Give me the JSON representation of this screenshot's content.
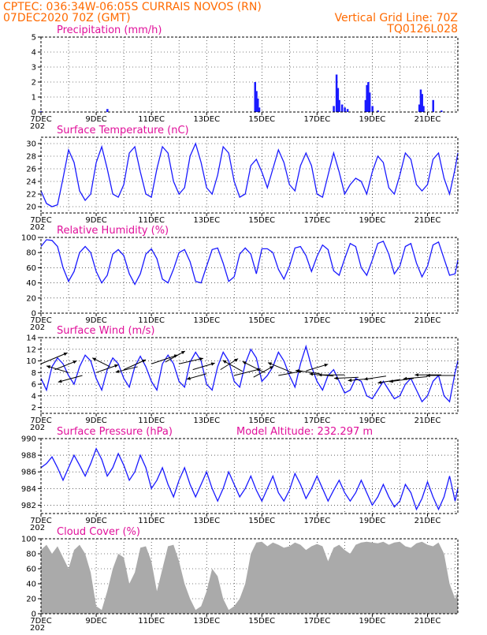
{
  "header": {
    "line1_left": "CPTEC:   036:34W-06:05S   CURRAIS NOVOS (RN)",
    "line2_left": "07DEC2020 70Z (GMT)",
    "line2_right": "Vertical Grid Line: 70Z",
    "line3_right": "TQ0126L028"
  },
  "colors": {
    "header": "#ff6a00",
    "panel_title": "#e0109a",
    "series": "#1a1aff",
    "cloud": "#aaaaaa",
    "grid": "#000000"
  },
  "x_axis": {
    "start_day": 7,
    "end_day": 22.1,
    "tick_labels": [
      "7DEC",
      "9DEC",
      "11DEC",
      "13DEC",
      "15DEC",
      "17DEC",
      "19DEC",
      "21DEC"
    ],
    "tick_days": [
      7,
      9,
      11,
      13,
      15,
      17,
      19,
      21
    ],
    "under_label": "202"
  },
  "chart_data": [
    {
      "id": "precip",
      "type": "bar",
      "title": "Precipitation (mm/h)",
      "ylim": [
        0,
        5
      ],
      "yticks": [
        0,
        1,
        2,
        3,
        4,
        5
      ],
      "bars": [
        [
          7.0,
          0.05
        ],
        [
          9.4,
          0.2
        ],
        [
          14.75,
          2.0
        ],
        [
          14.8,
          1.4
        ],
        [
          14.85,
          0.9
        ],
        [
          14.9,
          0.3
        ],
        [
          17.6,
          0.4
        ],
        [
          17.7,
          2.5
        ],
        [
          17.75,
          1.6
        ],
        [
          17.8,
          0.8
        ],
        [
          17.9,
          0.5
        ],
        [
          18.0,
          0.3
        ],
        [
          18.1,
          0.2
        ],
        [
          18.75,
          0.8
        ],
        [
          18.8,
          1.8
        ],
        [
          18.85,
          2.0
        ],
        [
          18.9,
          1.3
        ],
        [
          19.0,
          0.4
        ],
        [
          19.2,
          0.1
        ],
        [
          20.7,
          0.5
        ],
        [
          20.75,
          1.5
        ],
        [
          20.8,
          1.2
        ],
        [
          20.85,
          0.4
        ],
        [
          21.2,
          0.8
        ],
        [
          21.5,
          0.1
        ]
      ]
    },
    {
      "id": "temp",
      "type": "line",
      "title": "Surface Temperature (nC)",
      "ylim": [
        19,
        31
      ],
      "yticks": [
        20,
        22,
        24,
        26,
        28,
        30
      ],
      "x": [
        7.0,
        7.2,
        7.4,
        7.6,
        7.8,
        8.0,
        8.2,
        8.4,
        8.6,
        8.8,
        9.0,
        9.2,
        9.4,
        9.6,
        9.8,
        10.0,
        10.2,
        10.4,
        10.6,
        10.8,
        11.0,
        11.2,
        11.4,
        11.6,
        11.8,
        12.0,
        12.2,
        12.4,
        12.6,
        12.8,
        13.0,
        13.2,
        13.4,
        13.6,
        13.8,
        14.0,
        14.2,
        14.4,
        14.6,
        14.8,
        15.0,
        15.2,
        15.4,
        15.6,
        15.8,
        16.0,
        16.2,
        16.4,
        16.6,
        16.8,
        17.0,
        17.2,
        17.4,
        17.6,
        17.8,
        18.0,
        18.2,
        18.4,
        18.6,
        18.8,
        19.0,
        19.2,
        19.4,
        19.6,
        19.8,
        20.0,
        20.2,
        20.4,
        20.6,
        20.8,
        21.0,
        21.2,
        21.4,
        21.6,
        21.8,
        22.0,
        22.1
      ],
      "y": [
        22.5,
        20.5,
        20.0,
        20.3,
        24.5,
        29.0,
        27.0,
        22.5,
        21.0,
        22.0,
        27.0,
        29.5,
        26.0,
        22.0,
        21.5,
        23.5,
        28.5,
        29.5,
        25.5,
        22.0,
        21.5,
        26.0,
        29.5,
        28.5,
        24.0,
        22.0,
        23.0,
        28.0,
        30.0,
        27.0,
        23.0,
        22.0,
        25.0,
        29.5,
        28.5,
        24.0,
        21.5,
        22.0,
        26.5,
        27.5,
        25.5,
        23.0,
        26.0,
        29.0,
        27.0,
        23.5,
        22.5,
        26.5,
        28.5,
        26.5,
        22.0,
        21.5,
        25.0,
        28.5,
        25.5,
        22.0,
        23.5,
        24.5,
        24.0,
        22.0,
        25.5,
        28.0,
        27.0,
        23.0,
        22.0,
        25.0,
        28.5,
        27.5,
        23.5,
        22.5,
        23.5,
        27.5,
        28.5,
        24.5,
        22.0,
        26.0,
        28.5
      ]
    },
    {
      "id": "rh",
      "type": "line",
      "title": "Relative Humidity (%)",
      "ylim": [
        0,
        100
      ],
      "yticks": [
        0,
        20,
        40,
        60,
        80,
        100
      ],
      "x": [
        7.0,
        7.2,
        7.4,
        7.6,
        7.8,
        8.0,
        8.2,
        8.4,
        8.6,
        8.8,
        9.0,
        9.2,
        9.4,
        9.6,
        9.8,
        10.0,
        10.2,
        10.4,
        10.6,
        10.8,
        11.0,
        11.2,
        11.4,
        11.6,
        11.8,
        12.0,
        12.2,
        12.4,
        12.6,
        12.8,
        13.0,
        13.2,
        13.4,
        13.6,
        13.8,
        14.0,
        14.2,
        14.4,
        14.6,
        14.8,
        15.0,
        15.2,
        15.4,
        15.6,
        15.8,
        16.0,
        16.2,
        16.4,
        16.6,
        16.8,
        17.0,
        17.2,
        17.4,
        17.6,
        17.8,
        18.0,
        18.2,
        18.4,
        18.6,
        18.8,
        19.0,
        19.2,
        19.4,
        19.6,
        19.8,
        20.0,
        20.2,
        20.4,
        20.6,
        20.8,
        21.0,
        21.2,
        21.4,
        21.6,
        21.8,
        22.0,
        22.1
      ],
      "y": [
        88,
        97,
        96,
        88,
        60,
        42,
        55,
        80,
        88,
        80,
        55,
        40,
        50,
        78,
        84,
        76,
        52,
        38,
        52,
        78,
        85,
        72,
        45,
        40,
        58,
        80,
        84,
        68,
        42,
        40,
        62,
        84,
        86,
        66,
        42,
        48,
        78,
        86,
        78,
        52,
        85,
        85,
        80,
        58,
        45,
        62,
        86,
        88,
        76,
        55,
        75,
        90,
        84,
        56,
        50,
        72,
        92,
        88,
        60,
        50,
        70,
        92,
        95,
        78,
        52,
        62,
        88,
        92,
        66,
        48,
        62,
        90,
        94,
        72,
        50,
        52,
        70
      ]
    },
    {
      "id": "wind",
      "type": "line",
      "title": "Surface Wind (m/s)",
      "ylim": [
        1,
        14
      ],
      "yticks": [
        2,
        4,
        6,
        8,
        10,
        12,
        14
      ],
      "x": [
        7.0,
        7.2,
        7.4,
        7.6,
        7.8,
        8.0,
        8.2,
        8.4,
        8.6,
        8.8,
        9.0,
        9.2,
        9.4,
        9.6,
        9.8,
        10.0,
        10.2,
        10.4,
        10.6,
        10.8,
        11.0,
        11.2,
        11.4,
        11.6,
        11.8,
        12.0,
        12.2,
        12.4,
        12.6,
        12.8,
        13.0,
        13.2,
        13.4,
        13.6,
        13.8,
        14.0,
        14.2,
        14.4,
        14.6,
        14.8,
        15.0,
        15.2,
        15.4,
        15.6,
        15.8,
        16.0,
        16.2,
        16.4,
        16.6,
        16.8,
        17.0,
        17.2,
        17.4,
        17.6,
        17.8,
        18.0,
        18.2,
        18.4,
        18.6,
        18.8,
        19.0,
        19.2,
        19.4,
        19.6,
        19.8,
        20.0,
        20.2,
        20.4,
        20.6,
        20.8,
        21.0,
        21.2,
        21.4,
        21.6,
        21.8,
        22.0,
        22.1
      ],
      "y": [
        7.0,
        5.0,
        9.0,
        10.5,
        9.5,
        7.5,
        6.0,
        9.0,
        11.0,
        10.0,
        7.0,
        5.0,
        8.5,
        10.5,
        9.5,
        7.0,
        5.5,
        9.0,
        10.8,
        9.0,
        6.5,
        5.0,
        9.5,
        11.0,
        9.5,
        6.5,
        5.5,
        9.8,
        11.5,
        10.0,
        6.0,
        5.0,
        9.0,
        11.5,
        10.0,
        6.5,
        5.5,
        9.5,
        12.0,
        10.5,
        6.5,
        7.5,
        9.0,
        11.5,
        10.0,
        7.5,
        5.5,
        9.5,
        12.5,
        9.0,
        6.5,
        5.0,
        7.5,
        8.5,
        6.5,
        4.5,
        5.0,
        7.0,
        6.5,
        4.0,
        3.5,
        5.0,
        6.5,
        5.0,
        3.5,
        4.0,
        6.0,
        7.0,
        5.0,
        3.0,
        4.0,
        6.5,
        7.5,
        4.0,
        3.0,
        8.0,
        10.0
      ]
    },
    {
      "id": "pressure",
      "type": "line",
      "title": "Surface Pressure (hPa)",
      "subtitle": "Model Altitude: 232.297 m",
      "ylim": [
        981,
        990
      ],
      "yticks": [
        982,
        984,
        986,
        988,
        990
      ],
      "x": [
        7.0,
        7.2,
        7.4,
        7.6,
        7.8,
        8.0,
        8.2,
        8.4,
        8.6,
        8.8,
        9.0,
        9.2,
        9.4,
        9.6,
        9.8,
        10.0,
        10.2,
        10.4,
        10.6,
        10.8,
        11.0,
        11.2,
        11.4,
        11.6,
        11.8,
        12.0,
        12.2,
        12.4,
        12.6,
        12.8,
        13.0,
        13.2,
        13.4,
        13.6,
        13.8,
        14.0,
        14.2,
        14.4,
        14.6,
        14.8,
        15.0,
        15.2,
        15.4,
        15.6,
        15.8,
        16.0,
        16.2,
        16.4,
        16.6,
        16.8,
        17.0,
        17.2,
        17.4,
        17.6,
        17.8,
        18.0,
        18.2,
        18.4,
        18.6,
        18.8,
        19.0,
        19.2,
        19.4,
        19.6,
        19.8,
        20.0,
        20.2,
        20.4,
        20.6,
        20.8,
        21.0,
        21.2,
        21.4,
        21.6,
        21.8,
        22.0,
        22.1
      ],
      "y": [
        986.5,
        987.0,
        987.8,
        986.5,
        985.0,
        986.5,
        988.0,
        986.8,
        985.5,
        987.0,
        988.8,
        987.5,
        985.5,
        986.5,
        988.2,
        986.8,
        985.0,
        986.0,
        988.0,
        986.5,
        984.0,
        985.0,
        986.5,
        984.5,
        983.0,
        985.0,
        986.5,
        984.5,
        983.0,
        984.5,
        986.0,
        984.0,
        982.5,
        984.0,
        986.0,
        984.5,
        983.0,
        984.0,
        985.5,
        983.8,
        982.5,
        984.0,
        985.5,
        983.5,
        982.5,
        983.8,
        985.8,
        984.5,
        982.8,
        984.0,
        985.5,
        984.0,
        982.5,
        983.8,
        985.0,
        983.5,
        982.5,
        983.5,
        985.0,
        983.5,
        982.0,
        983.0,
        984.5,
        983.0,
        981.8,
        982.5,
        984.5,
        983.5,
        981.5,
        982.8,
        984.8,
        983.0,
        981.5,
        983.0,
        985.5,
        982.5,
        984.0
      ]
    },
    {
      "id": "cloud",
      "type": "area",
      "title": "Cloud Cover (%)",
      "ylim": [
        0,
        100
      ],
      "yticks": [
        0,
        20,
        40,
        60,
        80,
        100
      ],
      "x": [
        7.0,
        7.2,
        7.4,
        7.6,
        7.8,
        8.0,
        8.2,
        8.4,
        8.6,
        8.8,
        9.0,
        9.2,
        9.4,
        9.6,
        9.8,
        10.0,
        10.2,
        10.4,
        10.6,
        10.8,
        11.0,
        11.2,
        11.4,
        11.6,
        11.8,
        12.0,
        12.2,
        12.4,
        12.6,
        12.8,
        13.0,
        13.2,
        13.4,
        13.6,
        13.8,
        14.0,
        14.2,
        14.4,
        14.6,
        14.8,
        15.0,
        15.2,
        15.4,
        15.6,
        15.8,
        16.0,
        16.2,
        16.4,
        16.6,
        16.8,
        17.0,
        17.2,
        17.4,
        17.6,
        17.8,
        18.0,
        18.2,
        18.4,
        18.6,
        18.8,
        19.0,
        19.2,
        19.4,
        19.6,
        19.8,
        20.0,
        20.2,
        20.4,
        20.6,
        20.8,
        21.0,
        21.2,
        21.4,
        21.6,
        21.8,
        22.0,
        22.1
      ],
      "y": [
        85,
        92,
        80,
        90,
        75,
        60,
        85,
        92,
        80,
        55,
        10,
        5,
        30,
        60,
        80,
        75,
        40,
        55,
        88,
        90,
        70,
        30,
        60,
        90,
        92,
        70,
        40,
        20,
        5,
        10,
        30,
        60,
        50,
        20,
        5,
        10,
        20,
        40,
        80,
        95,
        96,
        90,
        95,
        92,
        88,
        90,
        95,
        92,
        85,
        90,
        93,
        90,
        70,
        88,
        92,
        85,
        80,
        92,
        95,
        96,
        95,
        94,
        96,
        92,
        95,
        96,
        90,
        88,
        94,
        96,
        92,
        90,
        95,
        80,
        40,
        20,
        30
      ]
    }
  ],
  "wind_vectors": [
    [
      7.0,
      9.5,
      1.2,
      -1.0
    ],
    [
      7.5,
      8.5,
      1.0,
      -0.8
    ],
    [
      8.0,
      8.0,
      -1.0,
      -0.6
    ],
    [
      8.5,
      7.5,
      -1.1,
      0.6
    ],
    [
      9.0,
      8.0,
      1.0,
      -0.7
    ],
    [
      9.5,
      9.0,
      -0.8,
      -0.8
    ],
    [
      10.0,
      8.5,
      1.0,
      -0.9
    ],
    [
      10.5,
      9.0,
      -1.0,
      0.5
    ],
    [
      11.0,
      9.5,
      1.2,
      -0.8
    ],
    [
      11.5,
      9.8,
      0.9,
      -1.0
    ],
    [
      12.0,
      9.5,
      1.1,
      -0.5
    ],
    [
      12.5,
      8.5,
      1.0,
      -0.6
    ],
    [
      13.0,
      7.8,
      -0.9,
      0.5
    ],
    [
      13.5,
      8.5,
      0.8,
      -1.0
    ],
    [
      14.0,
      7.5,
      1.2,
      -0.6
    ],
    [
      14.3,
      8.2,
      -0.9,
      -1.0
    ],
    [
      14.7,
      7.2,
      0.9,
      -1.0
    ],
    [
      15.1,
      8.0,
      -1.0,
      -1.0
    ],
    [
      15.6,
      7.5,
      1.1,
      -0.4
    ],
    [
      16.1,
      8.0,
      -1.1,
      -0.9
    ],
    [
      16.6,
      8.3,
      1.0,
      -0.6
    ],
    [
      17.1,
      7.8,
      -1.1,
      -0.3
    ],
    [
      17.6,
      7.4,
      -1.1,
      -0.2
    ],
    [
      18.0,
      7.6,
      -1.2,
      0.0
    ],
    [
      18.5,
      7.2,
      -1.1,
      0.1
    ],
    [
      19.0,
      7.0,
      -1.1,
      0.2
    ],
    [
      19.5,
      7.4,
      -1.0,
      0.3
    ],
    [
      20.0,
      6.8,
      -1.0,
      0.3
    ],
    [
      20.5,
      7.0,
      -1.1,
      0.3
    ],
    [
      21.0,
      7.3,
      -1.1,
      0.2
    ],
    [
      21.5,
      7.6,
      -1.2,
      0.0
    ],
    [
      22.0,
      7.5,
      -1.3,
      0.0
    ]
  ]
}
